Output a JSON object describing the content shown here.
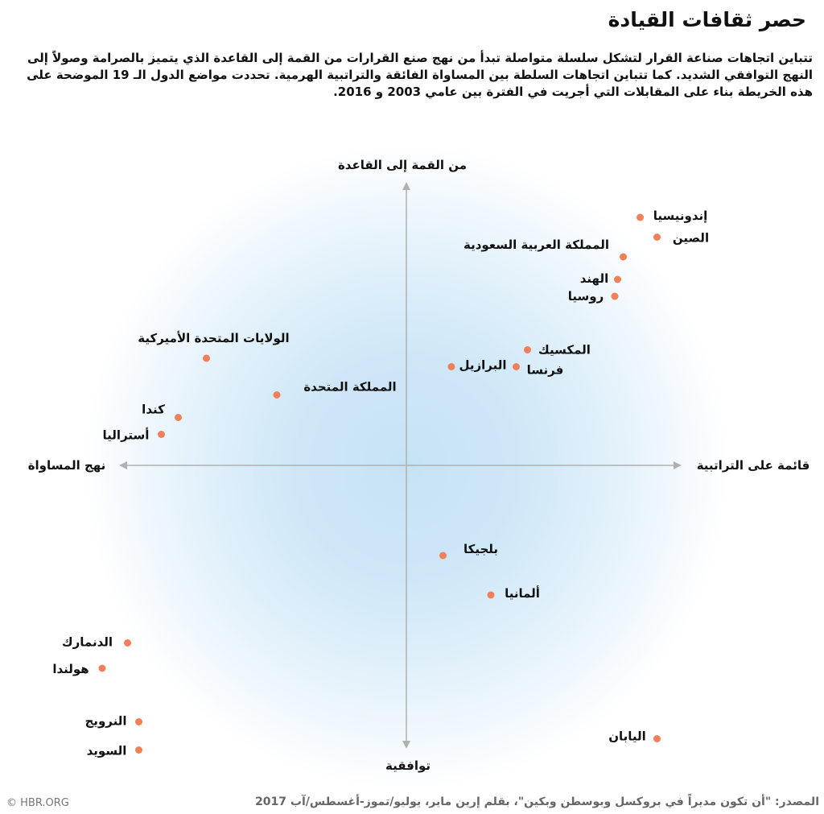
{
  "title": "حصر ثقافات القيادة",
  "subtitle": "تتباين اتجاهات صناعة القرار لتشكل سلسلة متواصلة تبدأ من نهج صنع القرارات من القمة إلى القاعدة الذي يتميز بالصرامة وصولاً إلى النهج التوافقي الشديد. كما تتباين اتجاهات السلطة بين المساواة الفائقة والتراتبية الهرمية. تحددت مواضع الدول الـ 19 الموضحة على هذه الخريطة بناء على المقابلات التي أجريت في الفترة بين عامي 2003 و 2016.",
  "source": "المصدر: \"أن تكون مديراً في بروكسل وبوسطن وبكين\"، بقلم إرين ماير، يوليو/تموز-أغسطس/آب 2017",
  "copyright": "© HBR.ORG",
  "chart_data": {
    "type": "scatter",
    "axes": {
      "top": "من القمة إلى القاعدة",
      "bottom": "توافقية",
      "left": "نهج المساواة",
      "right": "قائمة على التراتبية"
    },
    "xlim": [
      -100,
      100
    ],
    "ylim": [
      -100,
      100
    ],
    "grid": false,
    "point_color": "#f0805a",
    "axis_color": "#b0b0b0",
    "background_glow_color": "#c6e3f6",
    "points": [
      {
        "label": "إندونيسيا",
        "x": 83,
        "y": 88
      },
      {
        "label": "الصين",
        "x": 89,
        "y": 81
      },
      {
        "label": "المملكة العربية السعودية",
        "x": 77,
        "y": 74
      },
      {
        "label": "الهند",
        "x": 75,
        "y": 66
      },
      {
        "label": "روسيا",
        "x": 74,
        "y": 60
      },
      {
        "label": "المكسيك",
        "x": 43,
        "y": 41
      },
      {
        "label": "فرنسا",
        "x": 39,
        "y": 35
      },
      {
        "label": "البرازيل",
        "x": 16,
        "y": 35
      },
      {
        "label": "الولايات المتحدة الأميركية",
        "x": -71,
        "y": 38
      },
      {
        "label": "المملكة المتحدة",
        "x": -46,
        "y": 25
      },
      {
        "label": "كندا",
        "x": -81,
        "y": 17
      },
      {
        "label": "أستراليا",
        "x": -87,
        "y": 11
      },
      {
        "label": "بلجيكا",
        "x": 13,
        "y": -32
      },
      {
        "label": "ألمانيا",
        "x": 30,
        "y": -46
      },
      {
        "label": "الدنمارك",
        "x": -99,
        "y": -63
      },
      {
        "label": "هولندا",
        "x": -108,
        "y": -72
      },
      {
        "label": "النرويج",
        "x": -95,
        "y": -91
      },
      {
        "label": "السويد",
        "x": -95,
        "y": -101
      },
      {
        "label": "اليابان",
        "x": 89,
        "y": -97
      }
    ]
  }
}
